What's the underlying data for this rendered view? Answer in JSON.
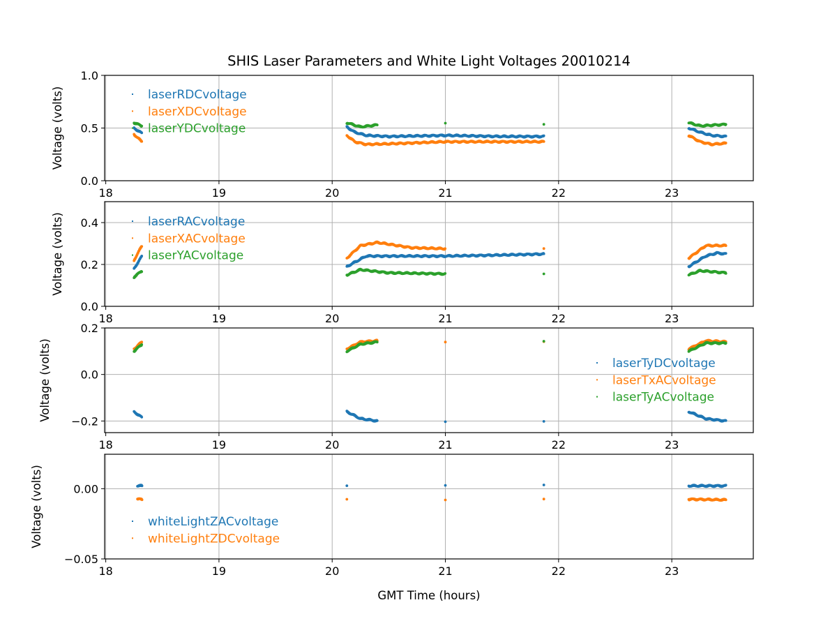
{
  "chart_data": {
    "title": "SHIS Laser Parameters and White Light Voltages 20010214",
    "xlabel": "GMT Time (hours)",
    "type": "scatter",
    "grid": true,
    "xlim": [
      17.99,
      23.72
    ],
    "xticks": [
      "18",
      "19",
      "20",
      "21",
      "22",
      "23"
    ],
    "subplots": [
      {
        "ylabel": "Voltage (volts)",
        "ylim": [
          0,
          1
        ],
        "yticks": [
          "0.0",
          "0.5",
          "1.0"
        ],
        "ytick_values": [
          0,
          0.5,
          1.0
        ],
        "legend_placement": "upper-left",
        "series": [
          {
            "name": "laserRDCvoltage",
            "color": "#1f77b4",
            "points": [
              [
                18.25,
                0.5
              ],
              [
                18.32,
                0.45
              ],
              [
                20.13,
                0.51
              ],
              [
                20.2,
                0.46
              ],
              [
                20.3,
                0.43
              ],
              [
                20.5,
                0.42
              ],
              [
                21.0,
                0.43
              ],
              [
                21.5,
                0.42
              ],
              [
                21.87,
                0.42
              ],
              [
                23.15,
                0.5
              ],
              [
                23.25,
                0.46
              ],
              [
                23.35,
                0.43
              ],
              [
                23.48,
                0.42
              ]
            ]
          },
          {
            "name": "laserXDCvoltage",
            "color": "#ff7f0e",
            "points": [
              [
                18.25,
                0.44
              ],
              [
                18.32,
                0.37
              ],
              [
                20.13,
                0.43
              ],
              [
                20.2,
                0.37
              ],
              [
                20.3,
                0.345
              ],
              [
                20.5,
                0.35
              ],
              [
                21.0,
                0.37
              ],
              [
                21.5,
                0.37
              ],
              [
                21.87,
                0.37
              ],
              [
                23.15,
                0.43
              ],
              [
                23.25,
                0.37
              ],
              [
                23.35,
                0.345
              ],
              [
                23.48,
                0.355
              ]
            ]
          },
          {
            "name": "laserYDCvoltage",
            "color": "#2ca02c",
            "points": [
              [
                18.25,
                0.55
              ],
              [
                18.32,
                0.52
              ],
              [
                20.13,
                0.55
              ],
              [
                20.25,
                0.51
              ],
              [
                20.4,
                0.53
              ],
              [
                21.0,
                0.54
              ],
              [
                21.87,
                0.54
              ],
              [
                23.15,
                0.55
              ],
              [
                23.25,
                0.52
              ],
              [
                23.48,
                0.535
              ]
            ]
          }
        ]
      },
      {
        "ylabel": "Voltage (volts)",
        "ylim": [
          0,
          0.5
        ],
        "yticks": [
          "0.0",
          "0.2",
          "0.4"
        ],
        "ytick_values": [
          0,
          0.2,
          0.4
        ],
        "legend_placement": "upper-left",
        "series": [
          {
            "name": "laserRACvoltage",
            "color": "#1f77b4",
            "points": [
              [
                18.25,
                0.18
              ],
              [
                18.32,
                0.24
              ],
              [
                20.13,
                0.19
              ],
              [
                20.3,
                0.24
              ],
              [
                20.5,
                0.24
              ],
              [
                21.0,
                0.24
              ],
              [
                21.5,
                0.245
              ],
              [
                21.87,
                0.25
              ],
              [
                23.15,
                0.19
              ],
              [
                23.3,
                0.24
              ],
              [
                23.4,
                0.255
              ],
              [
                23.48,
                0.25
              ]
            ]
          },
          {
            "name": "laserXACvoltage",
            "color": "#ff7f0e",
            "points": [
              [
                18.25,
                0.22
              ],
              [
                18.32,
                0.29
              ],
              [
                20.13,
                0.23
              ],
              [
                20.25,
                0.29
              ],
              [
                20.4,
                0.305
              ],
              [
                20.7,
                0.28
              ],
              [
                21.0,
                0.275
              ],
              [
                21.87,
                0.275
              ],
              [
                23.15,
                0.23
              ],
              [
                23.3,
                0.29
              ],
              [
                23.48,
                0.29
              ]
            ]
          },
          {
            "name": "laserYACvoltage",
            "color": "#2ca02c",
            "points": [
              [
                18.25,
                0.14
              ],
              [
                18.32,
                0.17
              ],
              [
                20.13,
                0.15
              ],
              [
                20.25,
                0.175
              ],
              [
                20.5,
                0.16
              ],
              [
                21.0,
                0.155
              ],
              [
                21.87,
                0.155
              ],
              [
                23.15,
                0.15
              ],
              [
                23.25,
                0.17
              ],
              [
                23.48,
                0.16
              ]
            ]
          }
        ]
      },
      {
        "ylabel": "Voltage (volts)",
        "ylim": [
          -0.25,
          0.2
        ],
        "yticks": [
          "−0.2",
          "0.0",
          "0.2"
        ],
        "ytick_values": [
          -0.2,
          0,
          0.2
        ],
        "legend_placement": "center-right",
        "series": [
          {
            "name": "laserTyDCvoltage",
            "color": "#1f77b4",
            "points": [
              [
                18.25,
                -0.16
              ],
              [
                18.32,
                -0.185
              ],
              [
                20.13,
                -0.16
              ],
              [
                20.25,
                -0.19
              ],
              [
                20.4,
                -0.2
              ],
              [
                21.0,
                -0.2
              ],
              [
                21.87,
                -0.205
              ],
              [
                23.15,
                -0.16
              ],
              [
                23.3,
                -0.19
              ],
              [
                23.48,
                -0.2
              ]
            ]
          },
          {
            "name": "laserTxACvoltage",
            "color": "#ff7f0e",
            "points": [
              [
                18.25,
                0.11
              ],
              [
                18.32,
                0.14
              ],
              [
                20.13,
                0.11
              ],
              [
                20.25,
                0.14
              ],
              [
                20.4,
                0.145
              ],
              [
                21.0,
                0.14
              ],
              [
                21.87,
                0.14
              ],
              [
                23.15,
                0.11
              ],
              [
                23.3,
                0.145
              ],
              [
                23.48,
                0.14
              ]
            ]
          },
          {
            "name": "laserTyACvoltage",
            "color": "#2ca02c",
            "points": [
              [
                18.25,
                0.1
              ],
              [
                18.32,
                0.13
              ],
              [
                20.13,
                0.1
              ],
              [
                20.25,
                0.13
              ],
              [
                20.4,
                0.14
              ],
              [
                21.87,
                0.145
              ],
              [
                23.15,
                0.1
              ],
              [
                23.3,
                0.135
              ],
              [
                23.48,
                0.135
              ]
            ]
          }
        ]
      },
      {
        "ylabel": "Voltage (volts)",
        "ylim": [
          -0.05,
          0.0245
        ],
        "yticks": [
          "−0.05",
          "0.00"
        ],
        "ytick_values": [
          -0.05,
          0
        ],
        "legend_placement": "lower-left",
        "series": [
          {
            "name": "whiteLightZACvoltage",
            "color": "#1f77b4",
            "points": [
              [
                18.28,
                0.002
              ],
              [
                18.32,
                0.002
              ],
              [
                20.13,
                0.002
              ],
              [
                21.0,
                0.0025
              ],
              [
                21.87,
                0.0025
              ],
              [
                23.15,
                0.002
              ],
              [
                23.48,
                0.002
              ]
            ]
          },
          {
            "name": "whiteLightZDCvoltage",
            "color": "#ff7f0e",
            "points": [
              [
                18.28,
                -0.0075
              ],
              [
                18.32,
                -0.0075
              ],
              [
                20.13,
                -0.0075
              ],
              [
                21.0,
                -0.008
              ],
              [
                21.87,
                -0.0075
              ],
              [
                23.15,
                -0.0075
              ],
              [
                23.48,
                -0.008
              ]
            ]
          }
        ]
      }
    ]
  }
}
